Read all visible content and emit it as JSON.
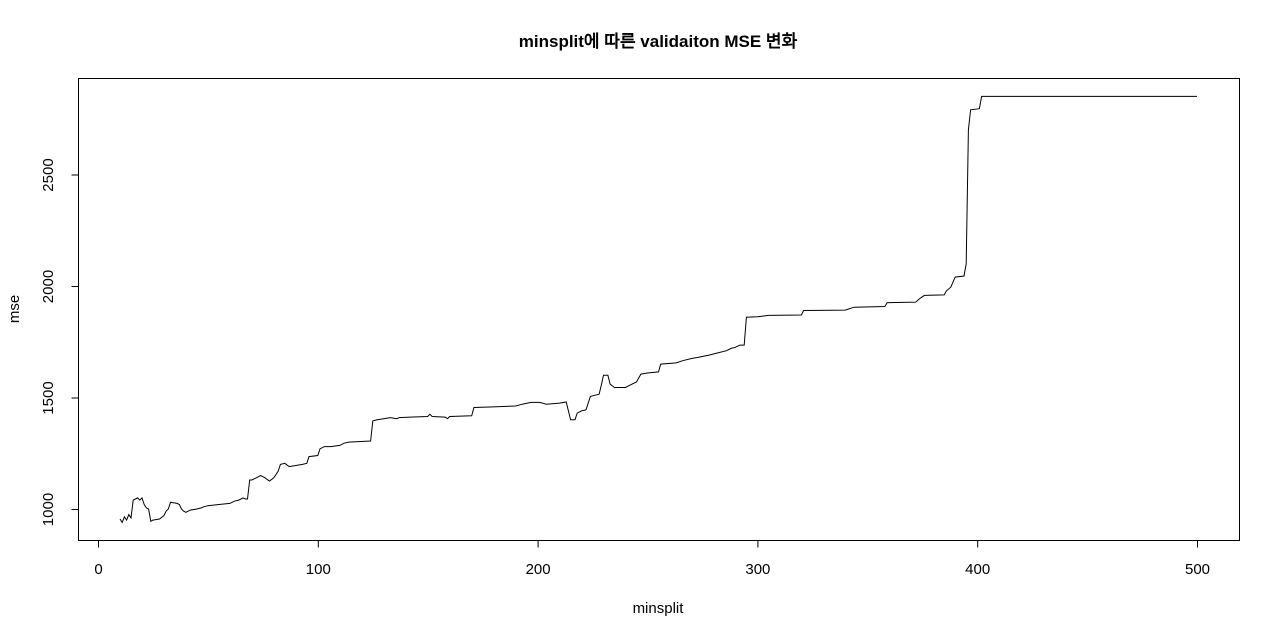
{
  "chart_data": {
    "type": "line",
    "title": "minsplit에 따른 validaiton MSE 변화",
    "xlabel": "minsplit",
    "ylabel": "mse",
    "xlim": [
      0,
      500
    ],
    "ylim": [
      900,
      2900
    ],
    "x_ticks": [
      0,
      100,
      200,
      300,
      400,
      500
    ],
    "y_ticks": [
      1000,
      1500,
      2000,
      2500
    ],
    "x_tick_labels": [
      "0",
      "100",
      "200",
      "300",
      "400",
      "500"
    ],
    "y_tick_labels": [
      "1000",
      "1500",
      "2000",
      "2500"
    ],
    "grid": false,
    "series": [
      {
        "points": [
          [
            10,
            955
          ],
          [
            11,
            940
          ],
          [
            12,
            965
          ],
          [
            13,
            950
          ],
          [
            14,
            975
          ],
          [
            15,
            960
          ],
          [
            16,
            1040
          ],
          [
            17,
            1045
          ],
          [
            18,
            1050
          ],
          [
            19,
            1040
          ],
          [
            20,
            1050
          ],
          [
            21,
            1020
          ],
          [
            22,
            1005
          ],
          [
            23,
            1000
          ],
          [
            24,
            945
          ],
          [
            25,
            950
          ],
          [
            28,
            955
          ],
          [
            30,
            970
          ],
          [
            31,
            990
          ],
          [
            32,
            1000
          ],
          [
            33,
            1030
          ],
          [
            36,
            1025
          ],
          [
            37,
            1020
          ],
          [
            38,
            1000
          ],
          [
            39,
            990
          ],
          [
            40,
            985
          ],
          [
            42,
            995
          ],
          [
            45,
            1000
          ],
          [
            47,
            1005
          ],
          [
            48,
            1010
          ],
          [
            50,
            1015
          ],
          [
            55,
            1020
          ],
          [
            60,
            1025
          ],
          [
            62,
            1035
          ],
          [
            64,
            1040
          ],
          [
            66,
            1050
          ],
          [
            67,
            1045
          ],
          [
            68,
            1045
          ],
          [
            69,
            1130
          ],
          [
            70,
            1130
          ],
          [
            72,
            1140
          ],
          [
            74,
            1150
          ],
          [
            76,
            1140
          ],
          [
            78,
            1125
          ],
          [
            80,
            1140
          ],
          [
            82,
            1170
          ],
          [
            83,
            1200
          ],
          [
            85,
            1205
          ],
          [
            87,
            1190
          ],
          [
            90,
            1195
          ],
          [
            93,
            1200
          ],
          [
            95,
            1205
          ],
          [
            96,
            1235
          ],
          [
            100,
            1240
          ],
          [
            101,
            1270
          ],
          [
            103,
            1280
          ],
          [
            106,
            1280
          ],
          [
            110,
            1285
          ],
          [
            112,
            1295
          ],
          [
            114,
            1300
          ],
          [
            124,
            1305
          ],
          [
            125,
            1395
          ],
          [
            127,
            1400
          ],
          [
            130,
            1405
          ],
          [
            133,
            1410
          ],
          [
            136,
            1405
          ],
          [
            137,
            1410
          ],
          [
            142,
            1412
          ],
          [
            150,
            1415
          ],
          [
            151,
            1425
          ],
          [
            152,
            1415
          ],
          [
            158,
            1412
          ],
          [
            159,
            1405
          ],
          [
            160,
            1415
          ],
          [
            170,
            1418
          ],
          [
            171,
            1455
          ],
          [
            180,
            1458
          ],
          [
            190,
            1462
          ],
          [
            193,
            1470
          ],
          [
            197,
            1478
          ],
          [
            201,
            1478
          ],
          [
            204,
            1470
          ],
          [
            210,
            1475
          ],
          [
            213,
            1480
          ],
          [
            214,
            1440
          ],
          [
            215,
            1400
          ],
          [
            217,
            1400
          ],
          [
            218,
            1430
          ],
          [
            220,
            1440
          ],
          [
            222,
            1445
          ],
          [
            224,
            1505
          ],
          [
            226,
            1510
          ],
          [
            228,
            1515
          ],
          [
            229,
            1555
          ],
          [
            230,
            1600
          ],
          [
            232,
            1600
          ],
          [
            233,
            1560
          ],
          [
            235,
            1545
          ],
          [
            240,
            1545
          ],
          [
            242,
            1555
          ],
          [
            245,
            1570
          ],
          [
            247,
            1605
          ],
          [
            250,
            1610
          ],
          [
            255,
            1615
          ],
          [
            256,
            1650
          ],
          [
            263,
            1655
          ],
          [
            266,
            1665
          ],
          [
            270,
            1675
          ],
          [
            273,
            1680
          ],
          [
            278,
            1690
          ],
          [
            282,
            1700
          ],
          [
            286,
            1710
          ],
          [
            288,
            1720
          ],
          [
            290,
            1725
          ],
          [
            292,
            1735
          ],
          [
            294,
            1735
          ],
          [
            295,
            1860
          ],
          [
            300,
            1862
          ],
          [
            305,
            1868
          ],
          [
            320,
            1870
          ],
          [
            321,
            1890
          ],
          [
            340,
            1892
          ],
          [
            344,
            1905
          ],
          [
            358,
            1908
          ],
          [
            359,
            1925
          ],
          [
            372,
            1928
          ],
          [
            374,
            1945
          ],
          [
            376,
            1958
          ],
          [
            385,
            1960
          ],
          [
            386,
            1978
          ],
          [
            388,
            1995
          ],
          [
            390,
            2040
          ],
          [
            394,
            2045
          ],
          [
            395,
            2100
          ],
          [
            396,
            2700
          ],
          [
            397,
            2790
          ],
          [
            401,
            2795
          ],
          [
            402,
            2850
          ],
          [
            500,
            2850
          ]
        ]
      }
    ]
  }
}
